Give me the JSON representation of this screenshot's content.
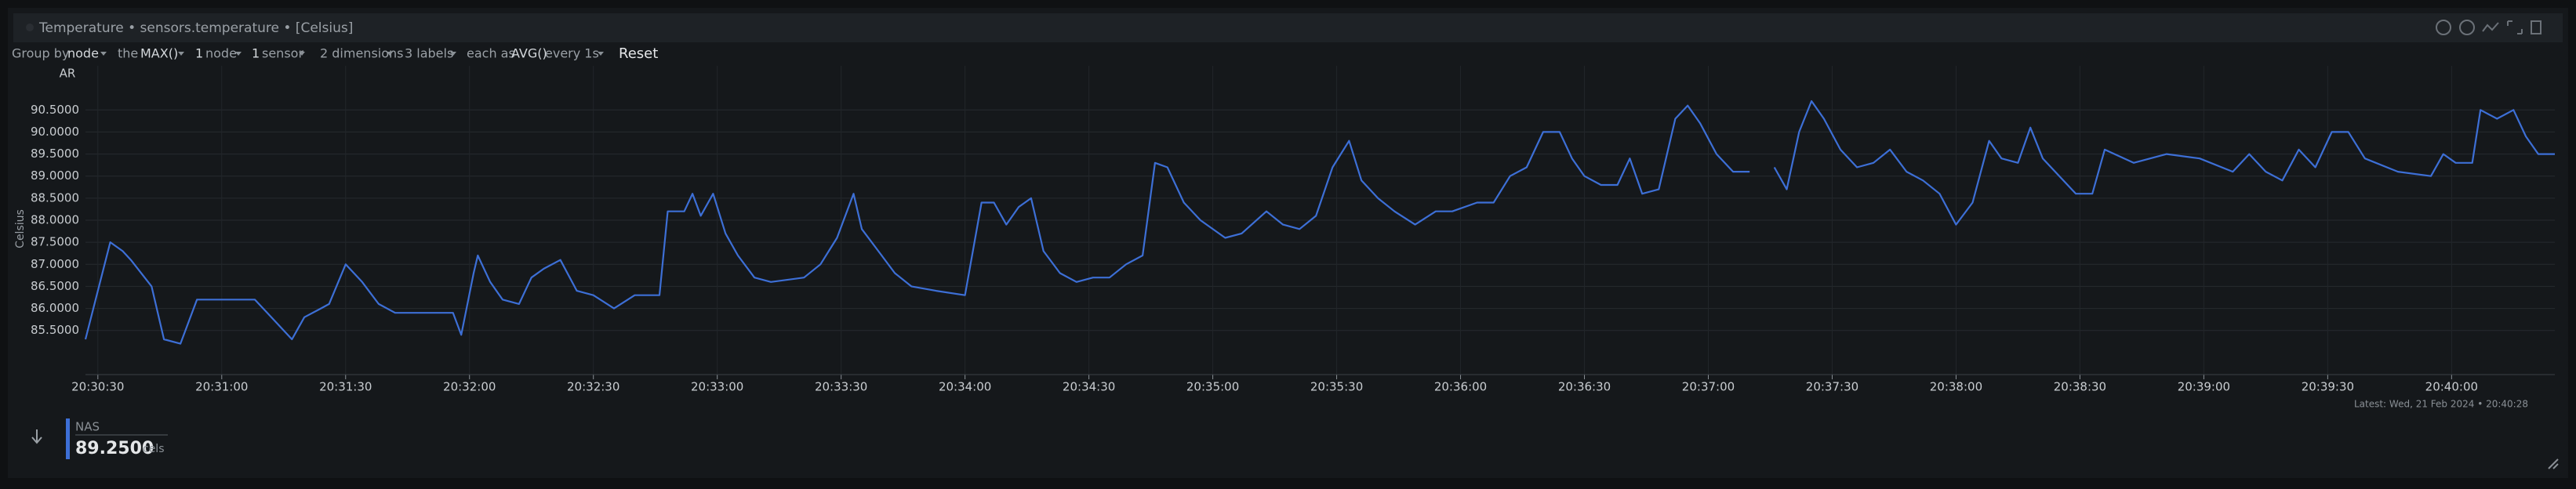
{
  "header": {
    "title": "Temperature • sensors.temperature • [Celsius]"
  },
  "toolbar": [
    "Group by",
    "node",
    "the",
    "MAX()",
    "1",
    "node",
    "1",
    "sensor",
    "2 dimensions",
    "3 labels",
    "each as",
    "AVG()",
    "every 1s",
    "Reset"
  ],
  "chart_data": {
    "type": "line",
    "ylabel": "Celsius",
    "corner_label": "AR",
    "x": [
      "20:30:27",
      "20:30:33",
      "20:30:36",
      "20:30:38",
      "20:30:43",
      "20:30:46",
      "20:30:50",
      "20:30:54",
      "20:31:08",
      "20:31:12",
      "20:31:17",
      "20:31:20",
      "20:31:24",
      "20:31:26",
      "20:31:30",
      "20:31:34",
      "20:31:38",
      "20:31:42",
      "20:31:56",
      "20:31:58",
      "20:32:01",
      "20:32:02",
      "20:32:05",
      "20:32:08",
      "20:32:12",
      "20:32:15",
      "20:32:18",
      "20:32:22",
      "20:32:26",
      "20:32:30",
      "20:32:35",
      "20:32:40",
      "20:32:46",
      "20:32:48",
      "20:32:52",
      "20:32:54",
      "20:32:56",
      "20:32:59",
      "20:33:02",
      "20:33:05",
      "20:33:09",
      "20:33:13",
      "20:33:21",
      "20:33:25",
      "20:33:29",
      "20:33:33",
      "20:33:35",
      "20:33:39",
      "20:33:43",
      "20:33:47",
      "20:33:53",
      "20:34:00",
      "20:34:04",
      "20:34:07",
      "20:34:10",
      "20:34:13",
      "20:34:16",
      "20:34:19",
      "20:34:23",
      "20:34:27",
      "20:34:31",
      "20:34:35",
      "20:34:39",
      "20:34:43",
      "20:34:46",
      "20:34:49",
      "20:34:53",
      "20:34:57",
      "20:35:03",
      "20:35:07",
      "20:35:13",
      "20:35:17",
      "20:35:21",
      "20:35:25",
      "20:35:29",
      "20:35:33",
      "20:35:36",
      "20:35:40",
      "20:35:44",
      "20:35:49",
      "20:35:54",
      "20:35:58",
      "20:36:04",
      "20:36:08",
      "20:36:12",
      "20:36:16",
      "20:36:20",
      "20:36:24",
      "20:36:27",
      "20:36:30",
      "20:36:34",
      "20:36:38",
      "20:36:41",
      "20:36:44",
      "20:36:48",
      "20:36:52",
      "20:36:55",
      "20:36:58",
      "20:37:02",
      "20:37:06",
      "20:37:10",
      "20:37:13",
      "20:37:16",
      "20:37:19",
      "20:37:22",
      "20:37:25",
      "20:37:28",
      "20:37:32",
      "20:37:36",
      "20:37:40",
      "20:37:44",
      "20:37:48",
      "20:37:52",
      "20:37:56",
      "20:38:00",
      "20:38:04",
      "20:38:08",
      "20:38:11",
      "20:38:15",
      "20:38:18",
      "20:38:21",
      "20:38:25",
      "20:38:29",
      "20:38:33",
      "20:38:36",
      "20:38:43",
      "20:38:51",
      "20:38:59",
      "20:39:07",
      "20:39:11",
      "20:39:15",
      "20:39:19",
      "20:39:23",
      "20:39:27",
      "20:39:31",
      "20:39:35",
      "20:39:39",
      "20:39:47",
      "20:39:55",
      "20:39:58",
      "20:40:01",
      "20:40:05",
      "20:40:07",
      "20:40:11",
      "20:40:15",
      "20:40:18",
      "20:40:21",
      "20:40:25"
    ],
    "series": [
      {
        "name": "NAS",
        "color": "#3d6fd6",
        "values": [
          85.3,
          87.5,
          87.3,
          87.1,
          86.5,
          85.3,
          85.2,
          86.2,
          86.2,
          85.8,
          85.3,
          85.8,
          86.0,
          86.1,
          87.0,
          86.6,
          86.1,
          85.9,
          85.9,
          85.4,
          86.8,
          87.2,
          86.6,
          86.2,
          86.1,
          86.7,
          86.9,
          87.1,
          86.4,
          86.3,
          86.0,
          86.3,
          86.3,
          88.2,
          88.2,
          88.6,
          88.1,
          88.6,
          87.7,
          87.2,
          86.7,
          86.6,
          86.7,
          87.0,
          87.6,
          88.6,
          87.8,
          87.3,
          86.8,
          86.5,
          86.4,
          86.3,
          88.4,
          88.4,
          87.9,
          88.3,
          88.5,
          87.3,
          86.8,
          86.6,
          86.7,
          86.7,
          87.0,
          87.2,
          89.3,
          89.2,
          88.4,
          88.0,
          87.6,
          87.7,
          88.2,
          87.9,
          87.8,
          88.1,
          89.2,
          89.8,
          88.9,
          88.5,
          88.2,
          87.9,
          88.2,
          88.2,
          88.4,
          88.4,
          89.0,
          89.2,
          90.0,
          90.0,
          89.4,
          89.0,
          88.8,
          88.8,
          89.4,
          88.6,
          88.7,
          90.3,
          90.6,
          90.2,
          89.5,
          89.1,
          89.1,
          null,
          89.2,
          88.7,
          90.0,
          90.7,
          90.3,
          89.6,
          89.2,
          89.3,
          89.6,
          89.1,
          88.9,
          88.6,
          87.9,
          88.4,
          89.8,
          89.4,
          89.3,
          90.1,
          89.4,
          89.0,
          88.6,
          88.6,
          89.6,
          89.3,
          89.5,
          89.4,
          89.1,
          89.5,
          89.1,
          88.9,
          89.6,
          89.2,
          90.0,
          90.0,
          89.4,
          89.1,
          89.0,
          89.5,
          89.3,
          89.3,
          90.5,
          90.3,
          90.5,
          89.9,
          89.5,
          89.5
        ]
      }
    ],
    "xlim": [
      "20:30:27",
      "20:40:25"
    ],
    "xticks": [
      "20:30:30",
      "20:31:00",
      "20:31:30",
      "20:32:00",
      "20:32:30",
      "20:33:00",
      "20:33:30",
      "20:34:00",
      "20:34:30",
      "20:35:00",
      "20:35:30",
      "20:36:00",
      "20:36:30",
      "20:37:00",
      "20:37:30",
      "20:38:00",
      "20:38:30",
      "20:39:00",
      "20:39:30",
      "20:40:00"
    ],
    "ylim": [
      84.5,
      91.5
    ],
    "yticks": [
      {
        "value": 85.5,
        "label": "85.5000"
      },
      {
        "value": 86,
        "label": "86.0000"
      },
      {
        "value": 86.5,
        "label": "86.5000"
      },
      {
        "value": 87,
        "label": "87.0000"
      },
      {
        "value": 87.5,
        "label": "87.5000"
      },
      {
        "value": 88,
        "label": "88.0000"
      },
      {
        "value": 88.5,
        "label": "88.5000"
      },
      {
        "value": 89,
        "label": "89.0000"
      },
      {
        "value": 89.5,
        "label": "89.5000"
      },
      {
        "value": 90,
        "label": "90.0000"
      },
      {
        "value": 90.5,
        "label": "90.5000"
      }
    ],
    "grid": true,
    "latest": "Latest:  Wed, 21 Feb 2024 • 20:40:28"
  },
  "legend": {
    "name": "NAS",
    "value": "89.2500",
    "unit": "cels"
  }
}
